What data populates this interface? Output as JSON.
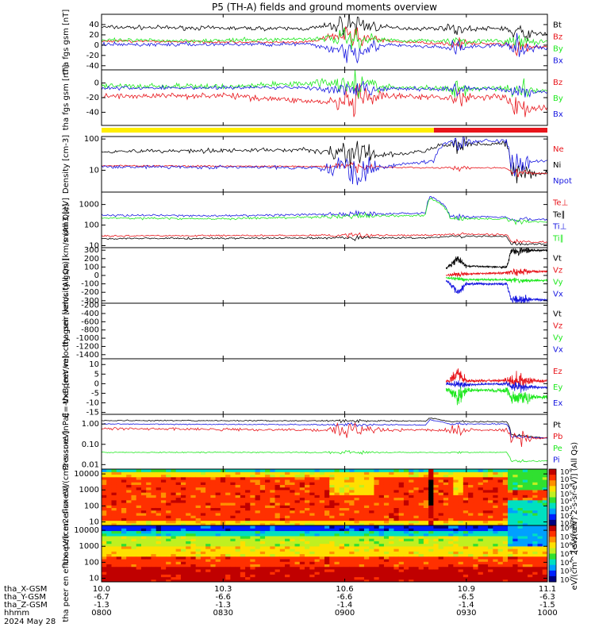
{
  "title": "P5 (TH-A) fields and ground moments overview",
  "colors": {
    "black": "#000000",
    "red": "#e8151b",
    "green": "#1ee81e",
    "blue": "#1818e0",
    "yellow": "#ffee00"
  },
  "status_bar": [
    {
      "start": 10.0,
      "end": 10.82,
      "color": "#ffee00"
    },
    {
      "start": 10.82,
      "end": 11.1,
      "color": "#e8151b"
    }
  ],
  "chart_data": [
    {
      "type": "line",
      "ylabel": "tha fgs gsm [nT]",
      "ylim": [
        -48,
        60
      ],
      "scale": "linear",
      "ticks": [
        40,
        20,
        0,
        -20,
        -40
      ],
      "legend": [
        "Bt",
        "Bz",
        "By",
        "Bx"
      ],
      "series": [
        {
          "name": "Bt",
          "color": "black",
          "noise": 3,
          "spike": 16,
          "x": [
            10.0,
            10.3,
            10.5,
            10.58,
            10.62,
            10.7,
            10.8,
            10.86,
            10.9,
            11.0,
            11.01,
            11.1
          ],
          "y": [
            35,
            33,
            32,
            38,
            42,
            34,
            32,
            34,
            31,
            33,
            22,
            22
          ]
        },
        {
          "name": "Bz",
          "color": "red",
          "noise": 2,
          "spike": 14,
          "x": [
            10.0,
            10.5,
            10.6,
            10.7,
            10.85,
            11.0,
            11.01,
            11.1
          ],
          "y": [
            8,
            5,
            20,
            8,
            3,
            3,
            -3,
            -3
          ]
        },
        {
          "name": "By",
          "color": "green",
          "noise": 3,
          "spike": 14,
          "x": [
            10.0,
            10.3,
            10.6,
            10.7,
            10.85,
            11.0,
            11.01,
            11.1
          ],
          "y": [
            9,
            9,
            14,
            10,
            8,
            8,
            6,
            6
          ]
        },
        {
          "name": "Bx",
          "color": "blue",
          "noise": 3,
          "spike": 18,
          "x": [
            10.0,
            10.5,
            10.6,
            10.7,
            10.86,
            11.0,
            11.01,
            11.1
          ],
          "y": [
            1,
            2,
            -10,
            0,
            -5,
            0,
            -6,
            -6
          ]
        }
      ]
    },
    {
      "type": "line",
      "ylabel": "tha fgs gsm [nT]",
      "ylim": [
        -58,
        18
      ],
      "scale": "linear",
      "ticks": [
        0,
        -20,
        -40
      ],
      "legend": [
        "Bz",
        "By",
        "Bx"
      ],
      "series": [
        {
          "name": "Bz",
          "color": "red",
          "noise": 3,
          "spike": 14,
          "x": [
            10.0,
            10.3,
            10.6,
            10.7,
            10.86,
            11.0,
            11.01,
            11.1
          ],
          "y": [
            -18,
            -17,
            -28,
            -18,
            -20,
            -18,
            -34,
            -34
          ]
        },
        {
          "name": "By",
          "color": "green",
          "noise": 3,
          "spike": 12,
          "x": [
            10.0,
            10.3,
            10.6,
            10.7,
            10.86,
            11.0,
            11.01,
            11.1
          ],
          "y": [
            -4,
            -5,
            2,
            -6,
            -8,
            -6,
            -10,
            -10
          ]
        },
        {
          "name": "Bx",
          "color": "blue",
          "noise": 2,
          "spike": 10,
          "x": [
            10.0,
            10.5,
            10.6,
            10.7,
            11.0,
            11.01,
            11.1
          ],
          "y": [
            -7,
            -6,
            -12,
            -8,
            -8,
            -12,
            -12
          ]
        }
      ]
    },
    {
      "type": "line",
      "ylabel": "Density [cm-3]",
      "ylim": [
        2,
        120
      ],
      "scale": "log",
      "ticks": [
        100,
        10
      ],
      "tick_labels": [
        "100",
        "10"
      ],
      "legend": [
        "Ne",
        "Ni",
        "Npot"
      ],
      "series": [
        {
          "name": "Ni",
          "color": "black",
          "noise": 0.05,
          "spike": 0.35,
          "x": [
            10.0,
            10.5,
            10.6,
            10.7,
            10.8,
            10.83,
            10.9,
            11.0,
            11.01,
            11.1
          ],
          "y": [
            40,
            45,
            35,
            30,
            40,
            60,
            70,
            70,
            8,
            8
          ]
        },
        {
          "name": "Ne",
          "color": "red",
          "noise": 0.02,
          "spike": 0.1,
          "x": [
            10.0,
            10.6,
            10.8,
            11.0,
            11.01,
            11.1
          ],
          "y": [
            14,
            13,
            12,
            12,
            8,
            8
          ]
        },
        {
          "name": "Npot",
          "color": "blue",
          "noise": 0.04,
          "spike": 0.5,
          "x": [
            10.0,
            10.6,
            10.7,
            10.82,
            10.85,
            11.0,
            11.01,
            11.1
          ],
          "y": [
            13,
            12,
            13,
            20,
            80,
            90,
            20,
            20
          ]
        }
      ]
    },
    {
      "type": "line",
      "ylabel": "mom3 [eV]",
      "ylim": [
        8,
        4000
      ],
      "scale": "log",
      "ticks": [
        1000,
        100,
        10
      ],
      "tick_labels": [
        "1000",
        "100",
        "10"
      ],
      "legend": [
        "Te⊥",
        "Te∥",
        "Ti⊥",
        "Ti∥"
      ],
      "series": [
        {
          "name": "Ti⊥",
          "color": "blue",
          "noise": 0.04,
          "spike": 0.1,
          "x": [
            10.0,
            10.3,
            10.8,
            10.81,
            10.86,
            11.0,
            11.01,
            11.1
          ],
          "y": [
            300,
            280,
            380,
            2500,
            250,
            250,
            200,
            180
          ]
        },
        {
          "name": "Ti∥",
          "color": "green",
          "noise": 0.04,
          "spike": 0.08,
          "x": [
            10.0,
            10.3,
            10.8,
            10.81,
            10.86,
            11.0,
            11.01,
            11.1
          ],
          "y": [
            220,
            200,
            300,
            2000,
            200,
            200,
            160,
            140
          ]
        },
        {
          "name": "Te⊥",
          "color": "red",
          "noise": 0.03,
          "spike": 0.08,
          "x": [
            10.0,
            10.8,
            10.86,
            11.0,
            11.01,
            11.1
          ],
          "y": [
            30,
            32,
            35,
            35,
            15,
            15
          ]
        },
        {
          "name": "Te∥",
          "color": "black",
          "noise": 0.03,
          "spike": 0.05,
          "x": [
            10.0,
            10.8,
            10.86,
            11.0,
            11.01,
            11.1
          ],
          "y": [
            22,
            24,
            28,
            28,
            12,
            12
          ]
        }
      ]
    },
    {
      "type": "line",
      "ylabel": "tha peir velocity gsm [km/s (All Qs)]",
      "ylim": [
        -330,
        330
      ],
      "scale": "linear",
      "ticks": [
        300,
        200,
        100,
        0,
        -100,
        -200,
        -300
      ],
      "legend": [
        "Vt",
        "Vz",
        "Vy",
        "Vx"
      ],
      "series": [
        {
          "name": "Vt",
          "color": "black",
          "noise": 8,
          "spike": 40,
          "x": [
            10.85,
            10.88,
            10.9,
            11.0,
            11.01,
            11.1
          ],
          "y": [
            80,
            200,
            110,
            100,
            290,
            300
          ]
        },
        {
          "name": "Vz",
          "color": "red",
          "noise": 10,
          "spike": 30,
          "x": [
            10.85,
            10.9,
            11.0,
            11.01,
            11.1
          ],
          "y": [
            0,
            20,
            30,
            40,
            50
          ]
        },
        {
          "name": "Vy",
          "color": "green",
          "noise": 8,
          "spike": 20,
          "x": [
            10.85,
            10.9,
            11.0,
            11.01,
            11.1
          ],
          "y": [
            -30,
            -50,
            -50,
            -60,
            -60
          ]
        },
        {
          "name": "Vx",
          "color": "blue",
          "noise": 10,
          "spike": 40,
          "x": [
            10.85,
            10.88,
            10.9,
            11.0,
            11.01,
            11.1
          ],
          "y": [
            -60,
            -200,
            -100,
            -100,
            -280,
            -290
          ]
        }
      ]
    },
    {
      "type": "line",
      "ylabel": "tha peer velocity gsm [km/s (All Qs)]",
      "ylim": [
        -1500,
        -150
      ],
      "scale": "linear",
      "ticks": [
        -200,
        -400,
        -600,
        -800,
        -1000,
        -1200,
        -1400
      ],
      "legend": [
        "Vt",
        "Vz",
        "Vy",
        "Vx"
      ],
      "series": []
    },
    {
      "type": "line",
      "ylabel": "E=-VxB [mV/m]",
      "ylim": [
        -16,
        13
      ],
      "scale": "linear",
      "ticks": [
        10,
        5,
        0,
        -5,
        -10,
        -15
      ],
      "legend": [
        "Ez",
        "Ey",
        "Ex"
      ],
      "series": [
        {
          "name": "Ez",
          "color": "red",
          "noise": 0.6,
          "spike": 3,
          "x": [
            10.85,
            10.88,
            10.9,
            11.0,
            11.1
          ],
          "y": [
            1,
            5,
            1.5,
            1.5,
            1.5
          ]
        },
        {
          "name": "Ex",
          "color": "blue",
          "noise": 0.4,
          "spike": 2,
          "x": [
            10.85,
            10.9,
            11.0,
            11.01,
            11.1
          ],
          "y": [
            0,
            -0.5,
            0,
            -1.5,
            -2
          ]
        },
        {
          "name": "Ey",
          "color": "green",
          "noise": 0.7,
          "spike": 4,
          "x": [
            10.85,
            10.88,
            10.9,
            11.0,
            11.01,
            11.1
          ],
          "y": [
            -3,
            -7,
            -3.5,
            -3.5,
            -7,
            -7
          ]
        }
      ]
    },
    {
      "type": "line",
      "ylabel": "Pressure [nPa]",
      "ylim": [
        0.006,
        3
      ],
      "scale": "log",
      "ticks": [
        1,
        0.1,
        0.01
      ],
      "tick_labels": [
        "1.00",
        "0.10",
        "0.01"
      ],
      "legend": [
        "Pt",
        "Pb",
        "Pe",
        "Pi"
      ],
      "series": [
        {
          "name": "Pt",
          "color": "black",
          "noise": 0.02,
          "spike": 0.05,
          "x": [
            10.0,
            10.8,
            10.81,
            10.86,
            11.0,
            11.01,
            11.1
          ],
          "y": [
            1.5,
            1.4,
            2.0,
            1.3,
            1.3,
            0.3,
            0.2
          ]
        },
        {
          "name": "Pi",
          "color": "blue",
          "noise": 0.02,
          "spike": 0.05,
          "x": [
            10.0,
            10.8,
            10.81,
            10.86,
            11.0,
            11.01,
            11.1
          ],
          "y": [
            1.0,
            0.9,
            1.6,
            1.0,
            1.0,
            0.25,
            0.2
          ]
        },
        {
          "name": "Pb",
          "color": "red",
          "noise": 0.05,
          "spike": 0.3,
          "x": [
            10.0,
            10.6,
            10.7,
            11.0,
            11.01,
            11.1
          ],
          "y": [
            0.6,
            0.5,
            0.5,
            0.5,
            0.2,
            0.2
          ]
        },
        {
          "name": "Pe",
          "color": "green",
          "noise": 0.02,
          "spike": 0.05,
          "x": [
            10.0,
            10.8,
            11.0,
            11.01,
            11.1
          ],
          "y": [
            0.04,
            0.04,
            0.04,
            0.015,
            0.015
          ]
        }
      ]
    },
    {
      "type": "heatmap",
      "ylabel": "tha peir en eflux eV/(cm2-s-sr-eV)",
      "ylim": [
        6,
        20000
      ],
      "scale": "log",
      "ticks": [
        10000,
        1000,
        100,
        10
      ],
      "tick_labels": [
        "10000",
        "1000",
        "100",
        "10"
      ],
      "colorbar": {
        "label": "[eV/(cm^2-s-sr-eV)] (All Qs)",
        "ticks": [
          "10⁸",
          "10⁷",
          "10⁶",
          "10⁵",
          "10⁴",
          "10³",
          "10²",
          "10¹"
        ]
      }
    },
    {
      "type": "heatmap",
      "ylabel": "tha peer en eflux eV/(cm2-s-sr-eV)",
      "ylim": [
        6,
        20000
      ],
      "scale": "log",
      "ticks": [
        10000,
        1000,
        100,
        10
      ],
      "tick_labels": [
        "10000",
        "1000",
        "100",
        "10"
      ],
      "colorbar": {
        "label": "eV/(cm^2-s-sr-eV)",
        "ticks": [
          "10⁸",
          "10⁷",
          "10⁶",
          "10⁵",
          "10⁴",
          "10³",
          "10²"
        ]
      }
    }
  ],
  "x_axis": {
    "xlim": [
      10.0,
      11.1
    ],
    "rows": [
      {
        "label": "tha_X-GSM",
        "values": [
          "10.0",
          "10.3",
          "10.6",
          "10.9",
          "11.1"
        ]
      },
      {
        "label": "tha_Y-GSM",
        "values": [
          "-6.7",
          "-6.6",
          "-6.6",
          "-6.5",
          "-6.3"
        ]
      },
      {
        "label": "tha_Z-GSM",
        "values": [
          "-1.3",
          "-1.3",
          "-1.4",
          "-1.4",
          "-1.5"
        ]
      },
      {
        "label": "hhmm",
        "values": [
          "0800",
          "0830",
          "0900",
          "0930",
          "1000"
        ]
      }
    ],
    "tick_x": [
      10.0,
      10.3,
      10.6,
      10.9,
      11.1
    ],
    "date": "2024 May 28"
  }
}
